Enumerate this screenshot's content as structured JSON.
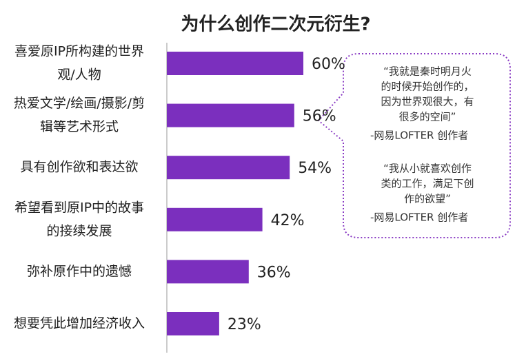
{
  "chart_data": {
    "type": "bar",
    "orientation": "horizontal",
    "title": "为什么创作二次元衍生?",
    "categories": [
      [
        "喜爱原IP所构建的世界",
        "观/人物"
      ],
      [
        "热爱文学/绘画/摄影/剪",
        "辑等艺术形式"
      ],
      [
        "具有创作欲和表达欲"
      ],
      [
        "希望看到原IP中的故事",
        "的接续发展"
      ],
      [
        "弥补原作中的遗憾"
      ],
      [
        "想要凭此增加经济收入"
      ]
    ],
    "values": [
      60,
      56,
      54,
      42,
      36,
      23
    ],
    "value_labels": [
      "60%",
      "56%",
      "54%",
      "42%",
      "36%",
      "23%"
    ],
    "color": "#7b2fbe",
    "annotations": [
      {
        "lines": [
          "“我就是秦时明月火",
          "的时候开始创作的，",
          "因为世界观很大，有",
          "很多的空间”"
        ],
        "author": "-网易LOFTER 创作者"
      },
      {
        "lines": [
          "“我从小就喜欢创作",
          "类的工作，满足下创",
          "作的欲望”"
        ],
        "author": "-网易LOFTER 创作者"
      }
    ]
  }
}
